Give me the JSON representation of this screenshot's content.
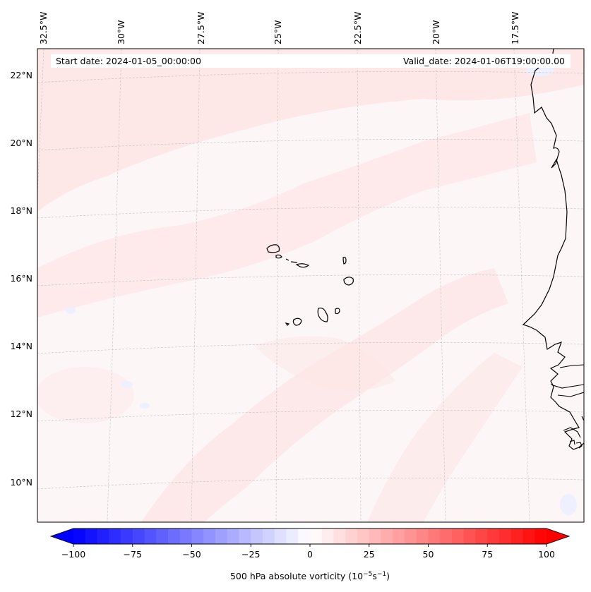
{
  "map": {
    "start_date_label": "Start date: 2024-01-05_00:00:00",
    "valid_date_label": "Valid_date: 2024-01-06T19:00:00.00",
    "lon_labels": [
      "32.5°W",
      "30°W",
      "27.5°W",
      "25°W",
      "22.5°W",
      "20°W",
      "17.5°W"
    ],
    "lat_labels": [
      "22°N",
      "20°N",
      "18°N",
      "16°N",
      "14°N",
      "12°N",
      "10°N"
    ],
    "extent": {
      "lon_min": -32.6,
      "lon_max": -15.6,
      "lat_min": 8.9,
      "lat_max": 22.8
    },
    "features": [
      "cape-verde-islands",
      "west-africa-coastline"
    ]
  },
  "colorbar": {
    "label": "500 hPa absolute vorticity (10",
    "label_exp1": "−5",
    "label_mid": "s",
    "label_exp2": "−1",
    "label_end": ")",
    "ticks": [
      "−100",
      "−75",
      "−50",
      "−25",
      "0",
      "25",
      "50",
      "75",
      "100"
    ],
    "min": -100,
    "max": 100,
    "levels": 40,
    "low_color": "#0000ff",
    "mid_color": "#ffffff",
    "high_color": "#ff0000"
  },
  "colors": {
    "field_base": "#fdf6f6",
    "field_pink": "#fde6e6",
    "field_blue": "#eef0ff",
    "coast": "#000000",
    "grid": "#c8c8c8"
  }
}
